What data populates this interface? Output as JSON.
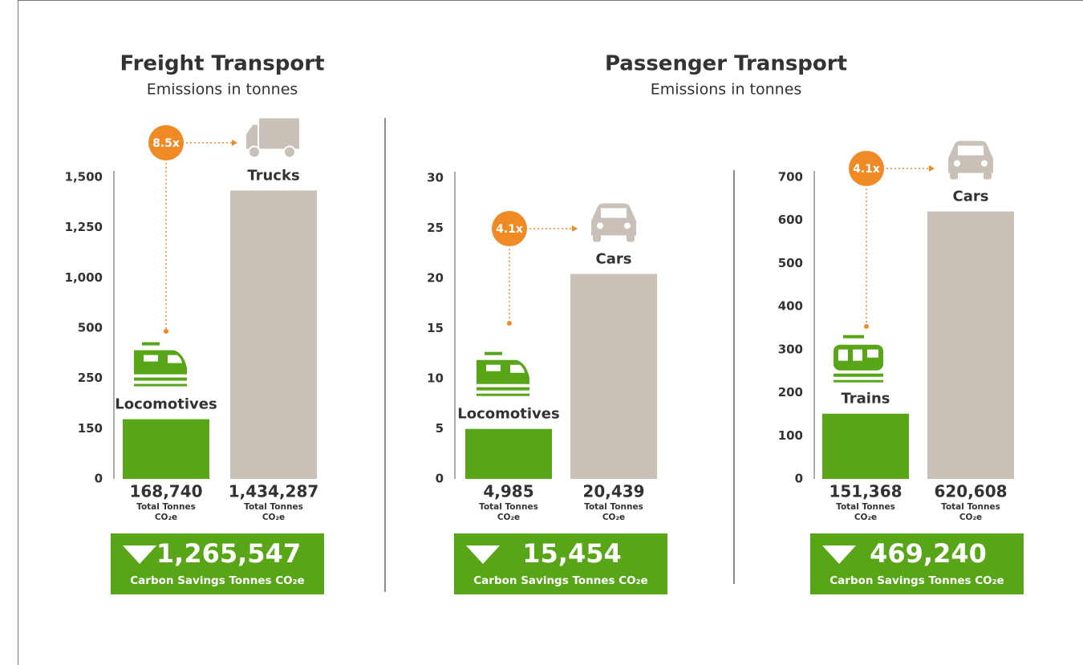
{
  "chart_data": [
    {
      "type": "bar",
      "title": "Freight Transport",
      "subtitle": "Emissions in tonnes",
      "categories": [
        "Locomotives",
        "Trucks"
      ],
      "values": [
        168.74,
        1434.287
      ],
      "value_labels": [
        "168,740",
        "1,434,287"
      ],
      "unit_label_1": "Total Tonnes",
      "unit_label_2": "CO₂e",
      "colors": [
        "#58a618",
        "#c9c1b8"
      ],
      "ylim": [
        0,
        1500
      ],
      "yticks": [
        0,
        150,
        250,
        500,
        {
          "value": 1000,
          "label": "1,000"
        },
        {
          "value": 1250,
          "label": "1,250"
        },
        {
          "value": 1500,
          "label": "1,500"
        }
      ],
      "ratio": "8.5x",
      "savings": "1,265,547",
      "savings_label": "Carbon Savings Tonnes CO₂e"
    },
    {
      "type": "bar",
      "title": "Passenger Transport",
      "subtitle": "Emissions in tonnes",
      "categories": [
        "Locomotives",
        "Cars"
      ],
      "values": [
        4.985,
        20.439
      ],
      "value_labels": [
        "4,985",
        "20,439"
      ],
      "unit_label_1": "Total Tonnes",
      "unit_label_2": "CO₂e",
      "colors": [
        "#58a618",
        "#c9c1b8"
      ],
      "ylim": [
        0,
        30
      ],
      "yticks": [
        0,
        5,
        10,
        15,
        20,
        25,
        30
      ],
      "ratio": "4.1x",
      "savings": "15,454",
      "savings_label": "Carbon Savings Tonnes CO₂e"
    },
    {
      "type": "bar",
      "categories": [
        "Trains",
        "Cars"
      ],
      "values": [
        151.368,
        620.608
      ],
      "value_labels": [
        "151,368",
        "620,608"
      ],
      "unit_label_1": "Total Tonnes",
      "unit_label_2": "CO₂e",
      "colors": [
        "#58a618",
        "#c9c1b8"
      ],
      "ylim": [
        0,
        700
      ],
      "yticks": [
        0,
        100,
        200,
        300,
        400,
        500,
        600,
        700
      ],
      "ratio": "4.1x",
      "savings": "469,240",
      "savings_label": "Carbon Savings Tonnes CO₂e"
    }
  ]
}
